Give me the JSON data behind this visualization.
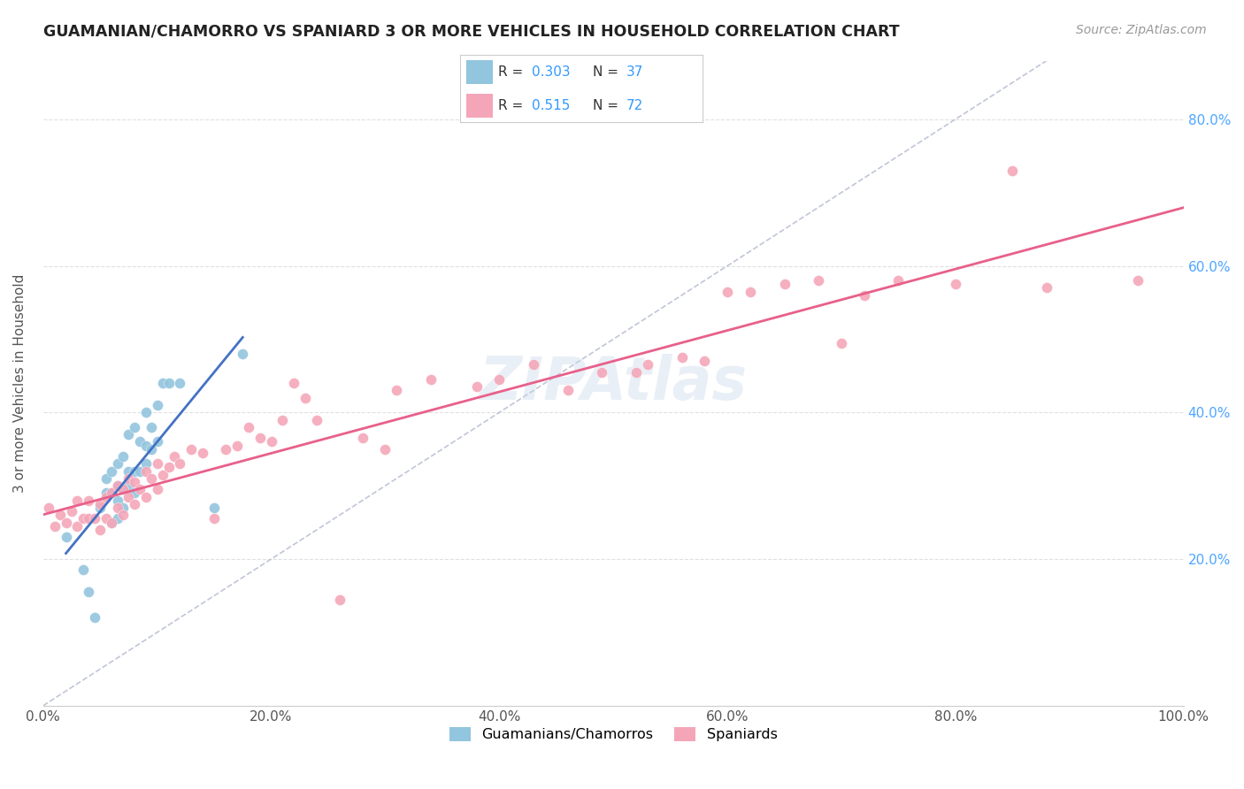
{
  "title": "GUAMANIAN/CHAMORRO VS SPANIARD 3 OR MORE VEHICLES IN HOUSEHOLD CORRELATION CHART",
  "source": "Source: ZipAtlas.com",
  "ylabel": "3 or more Vehicles in Household",
  "xlim": [
    0.0,
    1.0
  ],
  "ylim": [
    0.0,
    0.88
  ],
  "xtick_vals": [
    0.0,
    0.2,
    0.4,
    0.6,
    0.8,
    1.0
  ],
  "xtick_labels": [
    "0.0%",
    "20.0%",
    "40.0%",
    "60.0%",
    "80.0%",
    "100.0%"
  ],
  "ytick_vals": [
    0.2,
    0.4,
    0.6,
    0.8
  ],
  "ytick_labels": [
    "20.0%",
    "40.0%",
    "60.0%",
    "80.0%"
  ],
  "blue_color": "#92c5de",
  "pink_color": "#f4a6b8",
  "blue_line_color": "#4472c4",
  "pink_line_color": "#e8608a",
  "diagonal_color": "#b0b8cc",
  "watermark": "ZIPAtlas",
  "blue_scatter_x": [
    0.02,
    0.035,
    0.04,
    0.045,
    0.05,
    0.055,
    0.055,
    0.06,
    0.06,
    0.06,
    0.065,
    0.065,
    0.065,
    0.065,
    0.07,
    0.07,
    0.07,
    0.075,
    0.075,
    0.075,
    0.08,
    0.08,
    0.08,
    0.085,
    0.085,
    0.09,
    0.09,
    0.09,
    0.095,
    0.095,
    0.1,
    0.1,
    0.105,
    0.11,
    0.12,
    0.15,
    0.175
  ],
  "blue_scatter_y": [
    0.23,
    0.185,
    0.155,
    0.12,
    0.27,
    0.29,
    0.31,
    0.25,
    0.29,
    0.32,
    0.255,
    0.28,
    0.3,
    0.33,
    0.27,
    0.295,
    0.34,
    0.3,
    0.32,
    0.37,
    0.29,
    0.32,
    0.38,
    0.32,
    0.36,
    0.33,
    0.355,
    0.4,
    0.35,
    0.38,
    0.36,
    0.41,
    0.44,
    0.44,
    0.44,
    0.27,
    0.48
  ],
  "pink_scatter_x": [
    0.005,
    0.01,
    0.015,
    0.02,
    0.025,
    0.03,
    0.03,
    0.035,
    0.04,
    0.04,
    0.045,
    0.05,
    0.05,
    0.055,
    0.055,
    0.06,
    0.06,
    0.065,
    0.065,
    0.07,
    0.07,
    0.075,
    0.075,
    0.08,
    0.08,
    0.085,
    0.09,
    0.09,
    0.095,
    0.1,
    0.1,
    0.105,
    0.11,
    0.115,
    0.12,
    0.13,
    0.14,
    0.15,
    0.16,
    0.17,
    0.18,
    0.19,
    0.2,
    0.21,
    0.22,
    0.23,
    0.24,
    0.26,
    0.28,
    0.3,
    0.31,
    0.34,
    0.38,
    0.4,
    0.43,
    0.46,
    0.49,
    0.52,
    0.53,
    0.56,
    0.58,
    0.6,
    0.62,
    0.65,
    0.68,
    0.7,
    0.72,
    0.75,
    0.8,
    0.85,
    0.88,
    0.96
  ],
  "pink_scatter_y": [
    0.27,
    0.245,
    0.26,
    0.25,
    0.265,
    0.245,
    0.28,
    0.255,
    0.255,
    0.28,
    0.255,
    0.24,
    0.275,
    0.255,
    0.285,
    0.25,
    0.29,
    0.27,
    0.3,
    0.26,
    0.295,
    0.285,
    0.31,
    0.275,
    0.305,
    0.295,
    0.285,
    0.32,
    0.31,
    0.295,
    0.33,
    0.315,
    0.325,
    0.34,
    0.33,
    0.35,
    0.345,
    0.255,
    0.35,
    0.355,
    0.38,
    0.365,
    0.36,
    0.39,
    0.44,
    0.42,
    0.39,
    0.145,
    0.365,
    0.35,
    0.43,
    0.445,
    0.435,
    0.445,
    0.465,
    0.43,
    0.455,
    0.455,
    0.465,
    0.475,
    0.47,
    0.565,
    0.565,
    0.575,
    0.58,
    0.495,
    0.56,
    0.58,
    0.575,
    0.73,
    0.57,
    0.58
  ]
}
